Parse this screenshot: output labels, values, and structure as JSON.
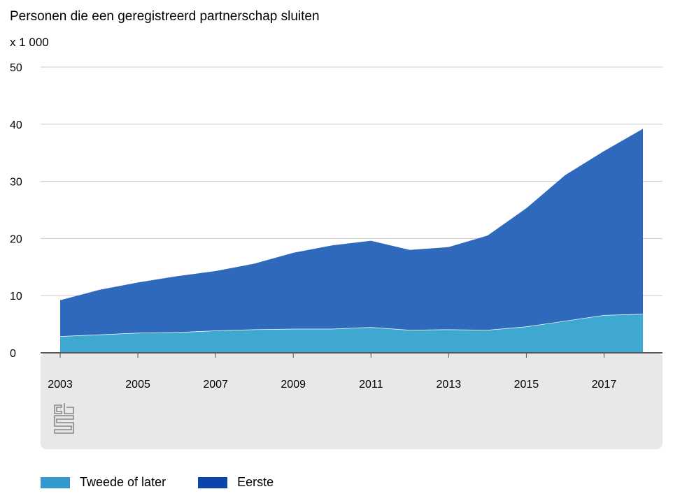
{
  "chart_data": {
    "type": "area",
    "stacked": true,
    "title": "Personen die een geregistreerd partnerschap sluiten",
    "unit_label": "x 1 000",
    "x": [
      2003,
      2004,
      2005,
      2006,
      2007,
      2008,
      2009,
      2010,
      2011,
      2012,
      2013,
      2014,
      2015,
      2016,
      2017,
      2018
    ],
    "x_tick_labels": [
      "2003",
      "2005",
      "2007",
      "2009",
      "2011",
      "2013",
      "2015",
      "2017"
    ],
    "y_ticks": [
      0,
      10,
      20,
      30,
      40,
      50
    ],
    "ylim": [
      0,
      50
    ],
    "grid": true,
    "legend_position": "bottom",
    "series": [
      {
        "name": "Tweede of later",
        "color": "#3ea8d1",
        "values": [
          2.9,
          3.2,
          3.5,
          3.6,
          3.9,
          4.1,
          4.2,
          4.2,
          4.5,
          4.0,
          4.1,
          4.0,
          4.6,
          5.6,
          6.6,
          6.8
        ]
      },
      {
        "name": "Eerste",
        "color": "#2f69bc",
        "values": [
          6.3,
          7.8,
          8.8,
          9.8,
          10.4,
          11.5,
          13.3,
          14.6,
          15.1,
          14.0,
          14.4,
          16.5,
          20.7,
          25.5,
          28.7,
          32.4
        ]
      }
    ]
  },
  "legend": {
    "items": [
      {
        "label": "Tweede of later",
        "color": "#3399cc"
      },
      {
        "label": "Eerste",
        "color": "#0b44aa"
      }
    ]
  },
  "logo": {
    "icon": "cbs-logo-icon"
  }
}
